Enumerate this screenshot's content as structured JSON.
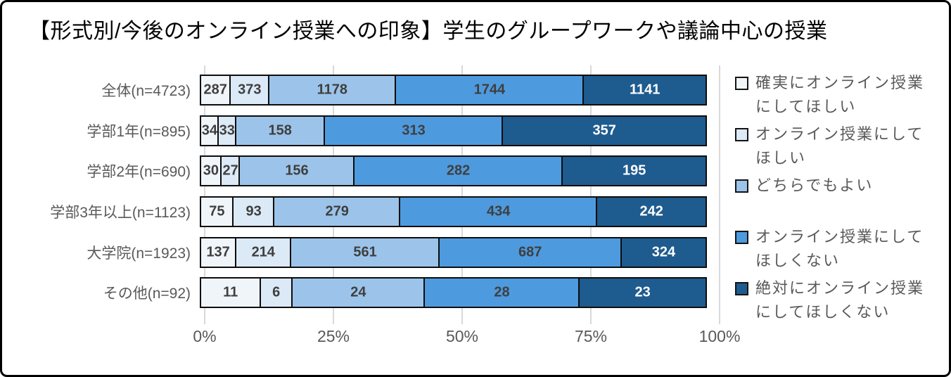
{
  "title": "【形式別/今後のオンライン授業への印象】学生のグループワークや議論中心の授業",
  "colors": {
    "title_text": "#000000",
    "axis_text": "#595959",
    "category_text": "#595959",
    "legend_text": "#595959",
    "gridline": "#d9d9d9",
    "segment_border": "#0d0d0d",
    "frame_border": "#000000",
    "background": "#ffffff"
  },
  "chart_data": {
    "type": "bar",
    "stacked": true,
    "percent_stacked": true,
    "orientation": "horizontal",
    "title": "【形式別/今後のオンライン授業への印象】学生のグループワークや議論中心の授業",
    "categories": [
      "全体(n=4723)",
      "学部1年(n=895)",
      "学部2年(n=690)",
      "学部3年以上(n=1123)",
      "大学院(n=1923)",
      "その他(n=92)"
    ],
    "category_totals": [
      4723,
      895,
      690,
      1123,
      1923,
      92
    ],
    "series": [
      {
        "name": "確実にオンライン授業にしてほしい",
        "color": "#f0f5fa",
        "label_color": "#3f3f3f",
        "values": [
          287,
          34,
          30,
          75,
          137,
          11
        ]
      },
      {
        "name": "オンライン授業にしてほしい",
        "color": "#dce9f6",
        "label_color": "#3f3f3f",
        "values": [
          373,
          33,
          27,
          93,
          214,
          6
        ]
      },
      {
        "name": "どちらでもよい",
        "color": "#9cc4ea",
        "label_color": "#3f3f3f",
        "values": [
          1178,
          158,
          156,
          279,
          561,
          24
        ]
      },
      {
        "name": "オンライン授業にしてほしくない",
        "color": "#4e9adf",
        "label_color": "#3f3f3f",
        "values": [
          1744,
          313,
          282,
          434,
          687,
          28
        ]
      },
      {
        "name": "絶対にオンライン授業にしてほしくない",
        "color": "#1e5b8f",
        "label_color": "#ffffff",
        "values": [
          1141,
          357,
          195,
          242,
          324,
          23
        ]
      }
    ],
    "x_ticks": [
      "0%",
      "25%",
      "50%",
      "75%",
      "100%"
    ],
    "x_tick_values": [
      0,
      25,
      50,
      75,
      100
    ],
    "xlim": [
      0,
      100
    ],
    "grid": true,
    "legend_position": "right"
  }
}
